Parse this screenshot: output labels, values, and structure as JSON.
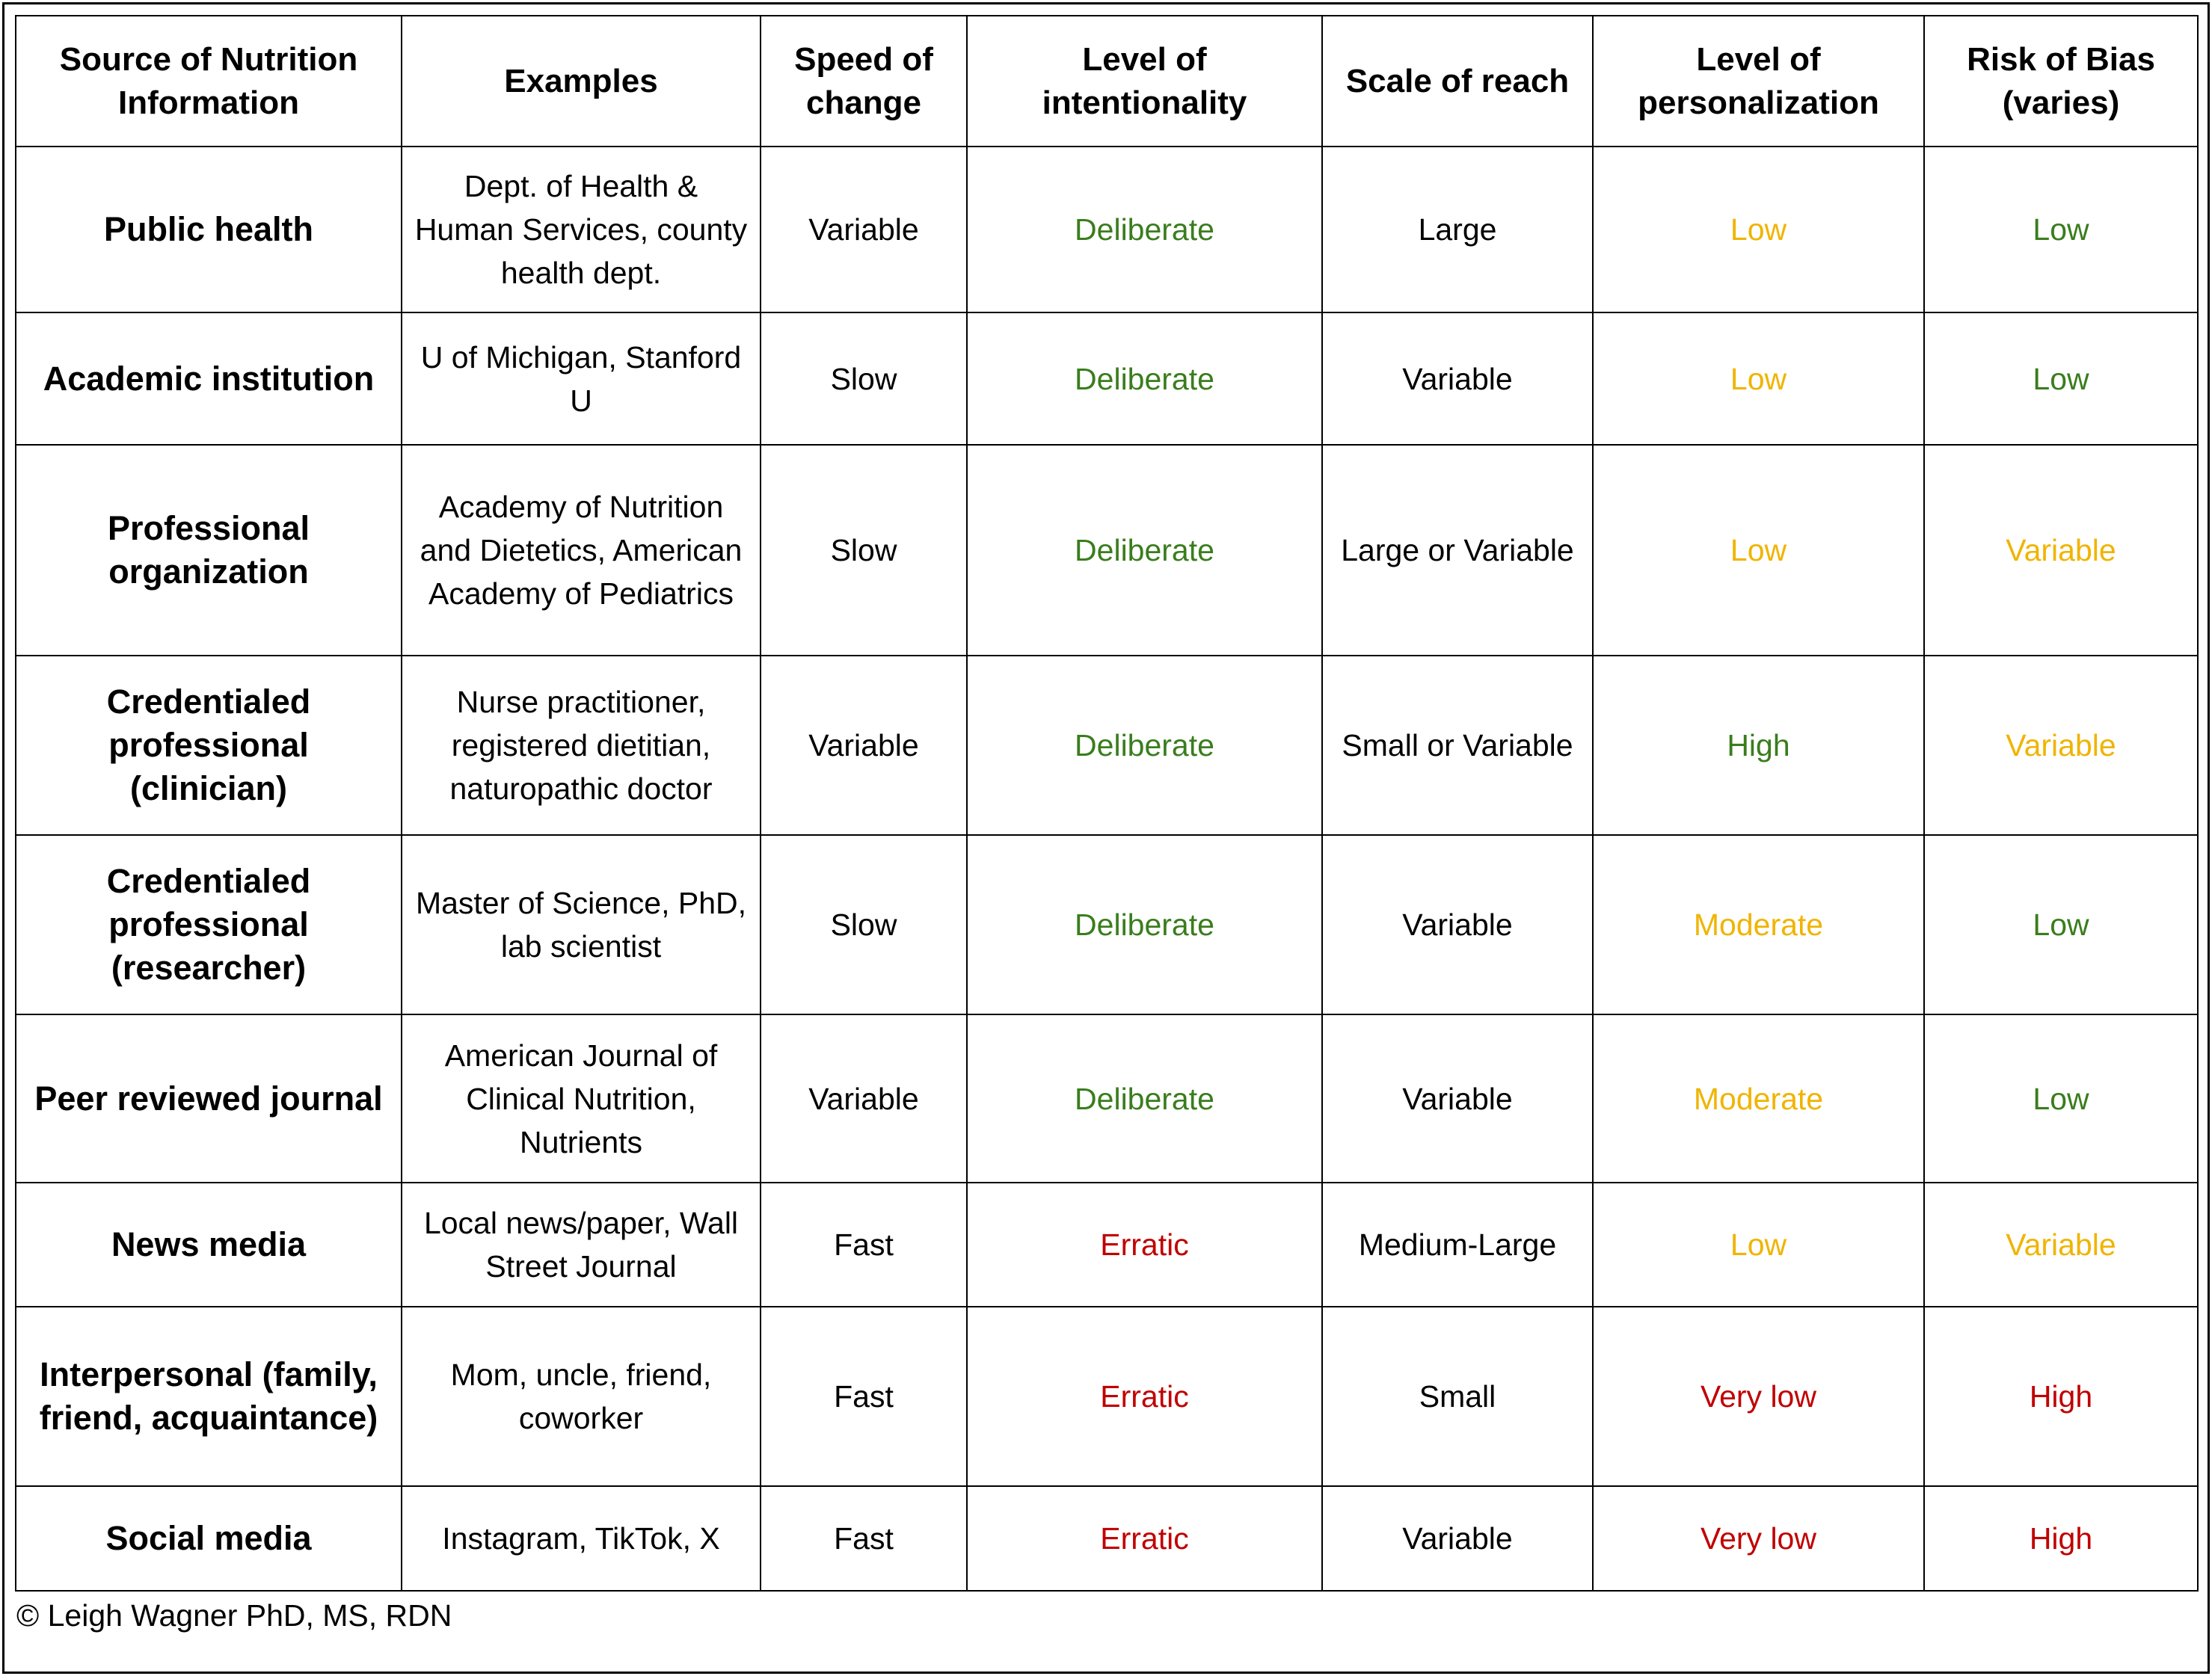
{
  "chart_data": {
    "type": "table",
    "columns": [
      "Source of Nutrition Information",
      "Examples",
      "Speed of change",
      "Level of intentionality",
      "Scale of reach",
      "Level of personalization",
      "Risk of Bias (varies)"
    ],
    "rows": [
      [
        "Public health",
        "Dept. of Health & Human Services, county health dept.",
        "Variable",
        "Deliberate",
        "Large",
        "Low",
        "Low"
      ],
      [
        "Academic institution",
        "U of Michigan, Stanford U",
        "Slow",
        "Deliberate",
        "Variable",
        "Low",
        "Low"
      ],
      [
        "Professional organization",
        "Academy of Nutrition and Dietetics, American Academy of Pediatrics",
        "Slow",
        "Deliberate",
        "Large or Variable",
        "Low",
        "Variable"
      ],
      [
        "Credentialed professional (clinician)",
        "Nurse practitioner, registered dietitian, naturopathic doctor",
        "Variable",
        "Deliberate",
        "Small or Variable",
        "High",
        "Variable"
      ],
      [
        "Credentialed professional (researcher)",
        "Master of Science, PhD, lab scientist",
        "Slow",
        "Deliberate",
        "Variable",
        "Moderate",
        "Low"
      ],
      [
        "Peer reviewed journal",
        "American Journal of Clinical Nutrition, Nutrients",
        "Variable",
        "Deliberate",
        "Variable",
        "Moderate",
        "Low"
      ],
      [
        "News media",
        "Local news/paper, Wall Street Journal",
        "Fast",
        "Erratic",
        "Medium-Large",
        "Low",
        "Variable"
      ],
      [
        "Interpersonal (family, friend, acquaintance)",
        "Mom, uncle, friend, coworker",
        "Fast",
        "Erratic",
        "Small",
        "Very low",
        "High"
      ],
      [
        "Social media",
        "Instagram, TikTok, X",
        "Fast",
        "Erratic",
        "Variable",
        "Very low",
        "High"
      ]
    ],
    "cell_colors": [
      [
        null,
        null,
        null,
        "#3a7d1d",
        null,
        "#f0b400",
        "#3a7d1d"
      ],
      [
        null,
        null,
        null,
        "#3a7d1d",
        null,
        "#f0b400",
        "#3a7d1d"
      ],
      [
        null,
        null,
        null,
        "#3a7d1d",
        null,
        "#f0b400",
        "#f0b400"
      ],
      [
        null,
        null,
        null,
        "#3a7d1d",
        null,
        "#3a7d1d",
        "#f0b400"
      ],
      [
        null,
        null,
        null,
        "#3a7d1d",
        null,
        "#f0b400",
        "#3a7d1d"
      ],
      [
        null,
        null,
        null,
        "#3a7d1d",
        null,
        "#f0b400",
        "#3a7d1d"
      ],
      [
        null,
        null,
        null,
        "#c00000",
        null,
        "#f0b400",
        "#f0b400"
      ],
      [
        null,
        null,
        null,
        "#c00000",
        null,
        "#c00000",
        "#c00000"
      ],
      [
        null,
        null,
        null,
        "#c00000",
        null,
        "#c00000",
        "#c00000"
      ]
    ]
  },
  "footer": {
    "credit": "© Leigh Wagner PhD, MS, RDN"
  }
}
